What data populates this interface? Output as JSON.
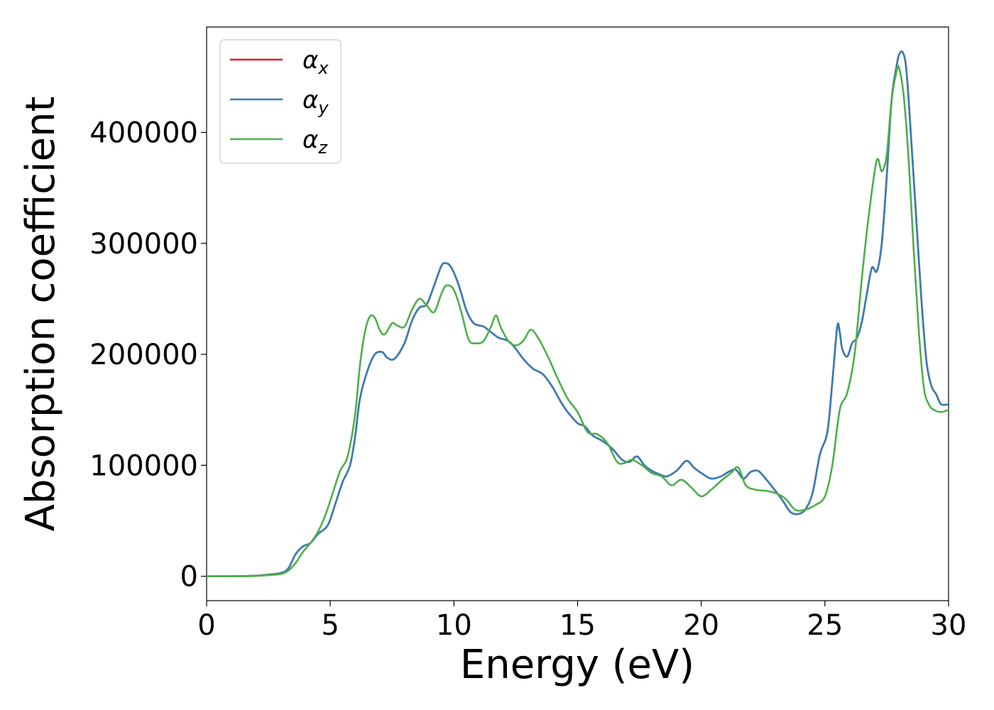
{
  "chart_data": {
    "type": "line",
    "title": "",
    "xlabel": "Energy (eV)",
    "ylabel": "Absorption coefficient",
    "xlim": [
      0,
      30
    ],
    "ylim": [
      -22000,
      495000
    ],
    "xticks": [
      0,
      5,
      10,
      15,
      20,
      25,
      30
    ],
    "yticks": [
      0,
      100000,
      200000,
      300000,
      400000
    ],
    "xtick_labels": [
      "0",
      "5",
      "10",
      "15",
      "20",
      "25",
      "30"
    ],
    "ytick_labels": [
      "0",
      "100000",
      "200000",
      "300000",
      "400000"
    ],
    "grid": false,
    "legend_position": "top-left",
    "series": [
      {
        "name": "α_x",
        "legend_symbol": "α",
        "legend_sub": "x",
        "color": "#e41a1c",
        "x": [
          0,
          1,
          2,
          2.5,
          3,
          3.3,
          3.6,
          3.9,
          4.2,
          4.5,
          4.9,
          5.2,
          5.5,
          5.8,
          6.0,
          6.2,
          6.5,
          6.8,
          7.1,
          7.3,
          7.6,
          8.0,
          8.3,
          8.6,
          8.9,
          9.2,
          9.5,
          9.7,
          9.9,
          10.2,
          10.5,
          10.8,
          11.2,
          11.5,
          11.8,
          12.2,
          12.5,
          12.8,
          13.2,
          13.6,
          14.0,
          14.3,
          14.6,
          15.0,
          15.3,
          15.6,
          16.0,
          16.4,
          16.8,
          17.1,
          17.4,
          17.7,
          18.0,
          18.3,
          18.6,
          19.0,
          19.4,
          19.7,
          20.0,
          20.4,
          20.8,
          21.1,
          21.4,
          21.7,
          22.0,
          22.3,
          22.6,
          23.0,
          23.3,
          23.6,
          23.9,
          24.2,
          24.5,
          24.8,
          25.1,
          25.3,
          25.5,
          25.6,
          25.7,
          25.9,
          26.1,
          26.3,
          26.5,
          26.7,
          26.9,
          27.1,
          27.3,
          27.5,
          27.7,
          27.9,
          28.0,
          28.15,
          28.3,
          28.5,
          28.7,
          28.9,
          29.1,
          29.3,
          29.5,
          29.7,
          30.0
        ],
        "values": [
          0,
          0,
          500,
          1500,
          3000,
          7000,
          20000,
          27000,
          30000,
          38000,
          46000,
          65000,
          85000,
          100000,
          125000,
          160000,
          185000,
          200000,
          202000,
          197000,
          196000,
          210000,
          230000,
          242000,
          245000,
          262000,
          280000,
          282000,
          278000,
          262000,
          240000,
          228000,
          225000,
          220000,
          215000,
          212000,
          205000,
          196000,
          187000,
          182000,
          170000,
          158000,
          148000,
          138000,
          135000,
          127000,
          122000,
          115000,
          105000,
          103000,
          108000,
          100000,
          95000,
          92000,
          90000,
          95000,
          104000,
          98000,
          93000,
          88000,
          90000,
          94000,
          96000,
          88000,
          94000,
          95000,
          88000,
          77000,
          68000,
          58000,
          56000,
          60000,
          75000,
          110000,
          130000,
          175000,
          225000,
          220000,
          205000,
          198000,
          210000,
          215000,
          230000,
          255000,
          278000,
          275000,
          300000,
          360000,
          430000,
          460000,
          470000,
          472000,
          455000,
          390000,
          320000,
          250000,
          195000,
          172000,
          164000,
          155000,
          155000
        ]
      },
      {
        "name": "α_y",
        "legend_symbol": "α",
        "legend_sub": "y",
        "color": "#377eb8",
        "x": [
          0,
          1,
          2,
          2.5,
          3,
          3.3,
          3.6,
          3.9,
          4.2,
          4.5,
          4.9,
          5.2,
          5.5,
          5.8,
          6.0,
          6.2,
          6.5,
          6.8,
          7.1,
          7.3,
          7.6,
          8.0,
          8.3,
          8.6,
          8.9,
          9.2,
          9.5,
          9.7,
          9.9,
          10.2,
          10.5,
          10.8,
          11.2,
          11.5,
          11.8,
          12.2,
          12.5,
          12.8,
          13.2,
          13.6,
          14.0,
          14.3,
          14.6,
          15.0,
          15.3,
          15.6,
          16.0,
          16.4,
          16.8,
          17.1,
          17.4,
          17.7,
          18.0,
          18.3,
          18.6,
          19.0,
          19.4,
          19.7,
          20.0,
          20.4,
          20.8,
          21.1,
          21.4,
          21.7,
          22.0,
          22.3,
          22.6,
          23.0,
          23.3,
          23.6,
          23.9,
          24.2,
          24.5,
          24.8,
          25.1,
          25.3,
          25.5,
          25.6,
          25.7,
          25.9,
          26.1,
          26.3,
          26.5,
          26.7,
          26.9,
          27.1,
          27.3,
          27.5,
          27.7,
          27.9,
          28.0,
          28.15,
          28.3,
          28.5,
          28.7,
          28.9,
          29.1,
          29.3,
          29.5,
          29.7,
          30.0
        ],
        "values": [
          0,
          0,
          500,
          1500,
          3000,
          7000,
          20000,
          27000,
          30000,
          38000,
          46000,
          65000,
          85000,
          100000,
          125000,
          160000,
          185000,
          200000,
          202000,
          197000,
          196000,
          210000,
          230000,
          242000,
          245000,
          262000,
          280000,
          282000,
          278000,
          262000,
          240000,
          228000,
          225000,
          220000,
          215000,
          212000,
          205000,
          196000,
          187000,
          182000,
          170000,
          158000,
          148000,
          138000,
          135000,
          127000,
          122000,
          115000,
          105000,
          103000,
          108000,
          100000,
          95000,
          92000,
          90000,
          95000,
          104000,
          98000,
          93000,
          88000,
          90000,
          94000,
          96000,
          88000,
          94000,
          95000,
          88000,
          77000,
          68000,
          58000,
          56000,
          60000,
          75000,
          110000,
          130000,
          175000,
          225000,
          220000,
          205000,
          198000,
          210000,
          215000,
          230000,
          255000,
          278000,
          275000,
          300000,
          360000,
          430000,
          460000,
          470000,
          472000,
          455000,
          390000,
          320000,
          250000,
          195000,
          172000,
          164000,
          155000,
          155000
        ]
      },
      {
        "name": "α_z",
        "legend_symbol": "α",
        "legend_sub": "z",
        "color": "#4daf4a",
        "x": [
          0,
          1,
          2,
          2.5,
          3,
          3.3,
          3.6,
          3.9,
          4.2,
          4.5,
          4.8,
          5.1,
          5.4,
          5.7,
          6.0,
          6.2,
          6.4,
          6.6,
          6.8,
          7.0,
          7.2,
          7.5,
          7.7,
          8.0,
          8.3,
          8.6,
          8.9,
          9.2,
          9.5,
          9.7,
          10.0,
          10.3,
          10.6,
          10.9,
          11.2,
          11.5,
          11.7,
          11.9,
          12.2,
          12.5,
          12.8,
          13.1,
          13.4,
          13.8,
          14.2,
          14.6,
          15.0,
          15.4,
          15.8,
          16.2,
          16.6,
          16.9,
          17.2,
          17.6,
          18.0,
          18.4,
          18.8,
          19.2,
          19.6,
          20.0,
          20.4,
          20.8,
          21.2,
          21.5,
          21.8,
          22.2,
          22.6,
          23.0,
          23.4,
          23.8,
          24.2,
          24.6,
          25.0,
          25.3,
          25.6,
          25.9,
          26.2,
          26.5,
          26.8,
          27.1,
          27.3,
          27.5,
          27.7,
          27.9,
          28.0,
          28.2,
          28.4,
          28.6,
          28.8,
          29.0,
          29.2,
          29.4,
          29.7,
          30.0
        ],
        "values": [
          0,
          0,
          300,
          1000,
          2000,
          5000,
          12000,
          22000,
          30000,
          40000,
          55000,
          75000,
          95000,
          108000,
          145000,
          190000,
          220000,
          234000,
          233000,
          222000,
          218000,
          228000,
          226000,
          225000,
          240000,
          250000,
          244000,
          238000,
          255000,
          262000,
          258000,
          238000,
          213000,
          210000,
          212000,
          225000,
          235000,
          224000,
          212000,
          208000,
          212000,
          222000,
          215000,
          198000,
          178000,
          160000,
          148000,
          130000,
          128000,
          120000,
          103000,
          102000,
          105000,
          100000,
          93000,
          90000,
          82000,
          87000,
          80000,
          72000,
          78000,
          86000,
          93000,
          98000,
          82000,
          78000,
          77000,
          75000,
          70000,
          60000,
          60000,
          64000,
          72000,
          100000,
          150000,
          165000,
          200000,
          270000,
          330000,
          375000,
          365000,
          380000,
          430000,
          455000,
          458000,
          430000,
          370000,
          290000,
          220000,
          170000,
          155000,
          150000,
          148000,
          150000
        ]
      }
    ]
  }
}
